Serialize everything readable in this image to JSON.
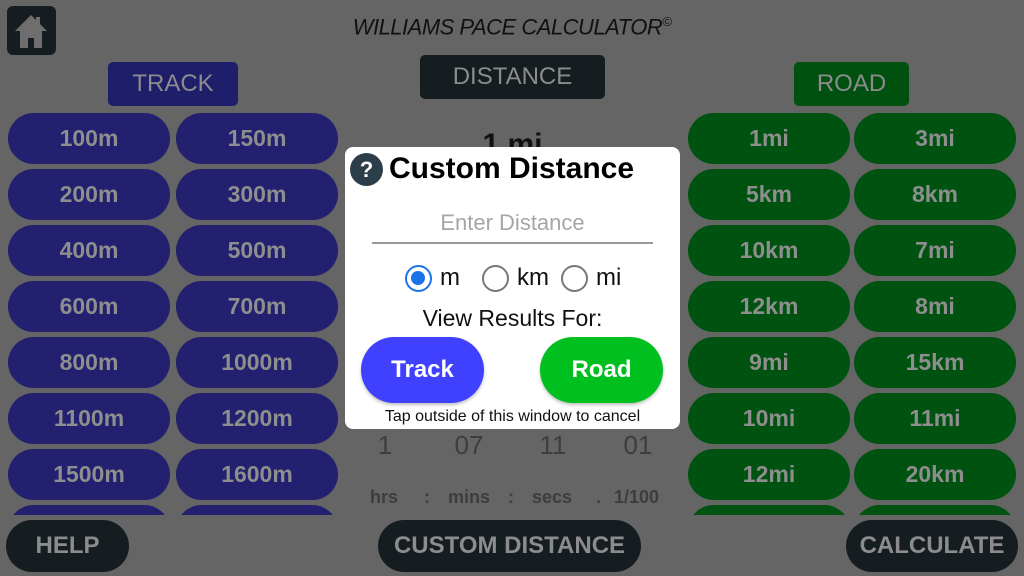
{
  "header": {
    "title": "WILLIAMS PACE CALCULATOR",
    "copyright": "©",
    "home_icon": "home-icon"
  },
  "sections": {
    "track": "TRACK",
    "distance": "DISTANCE",
    "road": "ROAD"
  },
  "track_buttons": [
    "100m",
    "150m",
    "200m",
    "300m",
    "400m",
    "500m",
    "600m",
    "700m",
    "800m",
    "1000m",
    "1100m",
    "1200m",
    "1500m",
    "1600m",
    "",
    ""
  ],
  "road_buttons": [
    "1mi",
    "3mi",
    "5km",
    "8km",
    "10km",
    "7mi",
    "12km",
    "8mi",
    "9mi",
    "15km",
    "10mi",
    "11mi",
    "12mi",
    "20km",
    "",
    ""
  ],
  "selected_distance": "1 mi",
  "time": {
    "hrs": "1",
    "mins": "07",
    "secs": "11",
    "hundredths": "01",
    "labels": [
      "hrs",
      ":",
      "mins",
      ":",
      "secs",
      ".",
      "1/100"
    ]
  },
  "footer": {
    "help": "HELP",
    "custom": "CUSTOM DISTANCE",
    "calculate": "CALCULATE"
  },
  "dialog": {
    "title": "Custom Distance",
    "help_icon": "?",
    "placeholder": "Enter Distance",
    "units": [
      {
        "label": "m",
        "selected": true
      },
      {
        "label": "km",
        "selected": false
      },
      {
        "label": "mi",
        "selected": false
      }
    ],
    "view_results": "View Results For:",
    "track": "Track",
    "road": "Road",
    "cancel_hint": "Tap outside of this window to cancel"
  },
  "colors": {
    "track": "#4040ff",
    "road": "#00c020",
    "radio": "#1a73e8",
    "dark": "#2d3e4b"
  }
}
